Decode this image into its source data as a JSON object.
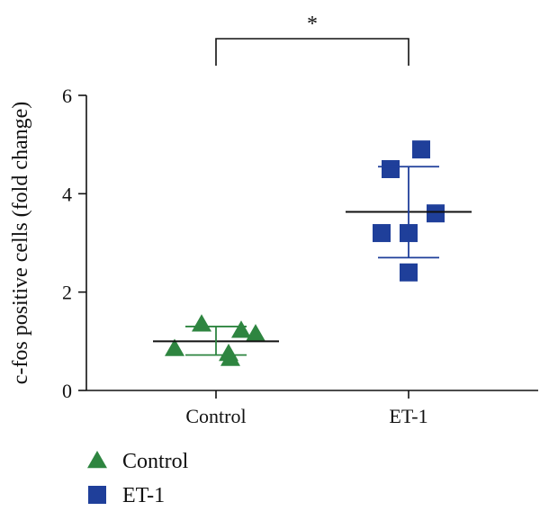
{
  "chart_data": {
    "type": "scatter",
    "title": "",
    "xlabel": "",
    "ylabel": "c-fos positive cells (fold change)",
    "ylim": [
      0,
      6
    ],
    "yticks": [
      0,
      2,
      4,
      6
    ],
    "categories": [
      "Control",
      "ET-1"
    ],
    "grid": false,
    "legend_position": "bottom-left",
    "series": [
      {
        "name": "Control",
        "marker": "triangle",
        "color": "#2e8540",
        "values": [
          0.85,
          1.35,
          0.65,
          0.75,
          1.22,
          1.15
        ],
        "mean": 1.0,
        "sd_upper": 1.3,
        "sd_lower": 0.72
      },
      {
        "name": "ET-1",
        "marker": "square",
        "color": "#1f3f9a",
        "values": [
          3.2,
          4.5,
          3.2,
          2.4,
          4.9,
          3.6
        ],
        "mean": 3.63,
        "sd_upper": 4.55,
        "sd_lower": 2.7
      }
    ],
    "significance": {
      "label": "*",
      "between": [
        "Control",
        "ET-1"
      ]
    }
  }
}
